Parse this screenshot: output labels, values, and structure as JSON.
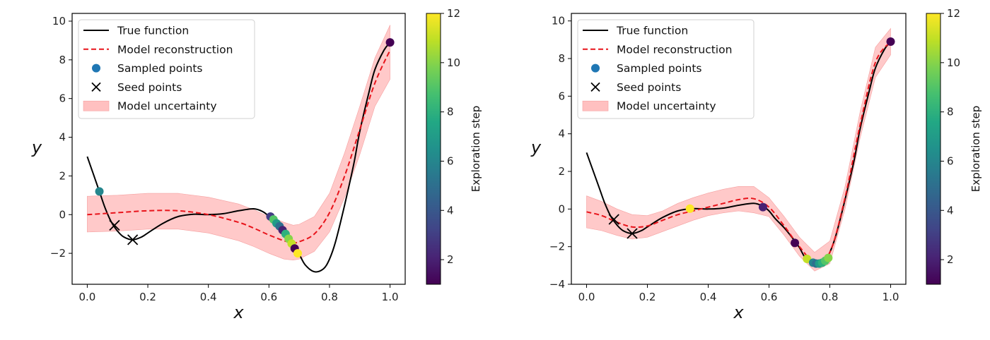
{
  "chart_data": [
    {
      "type": "line",
      "panel": "left",
      "title": "",
      "xlabel": "x",
      "ylabel": "y",
      "xlim": [
        -0.05,
        1.05
      ],
      "ylim": [
        -3.6,
        10.4
      ],
      "xticks": [
        0.0,
        0.2,
        0.4,
        0.6,
        0.8,
        1.0
      ],
      "xtick_labels": [
        "0.0",
        "0.2",
        "0.4",
        "0.6",
        "0.8",
        "1.0"
      ],
      "yticks": [
        -2,
        0,
        2,
        4,
        6,
        8,
        10
      ],
      "ytick_labels": [
        "−2",
        "0",
        "2",
        "4",
        "6",
        "8",
        "10"
      ],
      "grid": false,
      "legend": {
        "placement": "top-left",
        "entries": [
          "True function",
          "Model reconstruction",
          "Sampled points",
          "Seed points",
          "Model uncertainty"
        ]
      },
      "colorbar": {
        "label": "Exploration step",
        "range": [
          1,
          12
        ],
        "ticks": [
          2,
          4,
          6,
          8,
          10,
          12
        ],
        "tick_labels": [
          "2",
          "4",
          "6",
          "8",
          "10",
          "12"
        ],
        "colormap": "viridis"
      },
      "series": [
        {
          "name": "True function",
          "style": "solid",
          "color": "#000000",
          "x": [
            0.0,
            0.02,
            0.04,
            0.06,
            0.08,
            0.1,
            0.12,
            0.15,
            0.18,
            0.2,
            0.25,
            0.3,
            0.35,
            0.4,
            0.45,
            0.5,
            0.55,
            0.58,
            0.6,
            0.62,
            0.65,
            0.68,
            0.7,
            0.72,
            0.75,
            0.78,
            0.8,
            0.82,
            0.85,
            0.88,
            0.9,
            0.93,
            0.95,
            0.98,
            1.0
          ],
          "y": [
            3.0,
            2.1,
            1.2,
            0.3,
            -0.4,
            -0.85,
            -1.15,
            -1.3,
            -1.15,
            -0.95,
            -0.45,
            -0.1,
            0.02,
            0.0,
            0.05,
            0.2,
            0.3,
            0.15,
            -0.1,
            -0.5,
            -1.0,
            -1.6,
            -2.05,
            -2.6,
            -2.95,
            -2.8,
            -2.3,
            -1.4,
            0.5,
            2.6,
            4.3,
            6.3,
            7.5,
            8.5,
            8.9
          ]
        },
        {
          "name": "Model reconstruction",
          "style": "dashed",
          "color": "#e8141b",
          "x": [
            0.0,
            0.1,
            0.2,
            0.3,
            0.4,
            0.5,
            0.55,
            0.6,
            0.65,
            0.68,
            0.7,
            0.75,
            0.8,
            0.85,
            0.9,
            0.95,
            1.0
          ],
          "y": [
            0.0,
            0.1,
            0.2,
            0.2,
            0.0,
            -0.4,
            -0.7,
            -1.05,
            -1.35,
            -1.45,
            -1.4,
            -1.0,
            0.1,
            2.0,
            4.4,
            6.8,
            8.5
          ]
        }
      ],
      "uncertainty_band": {
        "name": "Model uncertainty",
        "color": "#ffc0c0",
        "x": [
          0.0,
          0.1,
          0.2,
          0.3,
          0.4,
          0.5,
          0.55,
          0.6,
          0.65,
          0.68,
          0.7,
          0.75,
          0.8,
          0.85,
          0.9,
          0.95,
          1.0
        ],
        "lower": [
          -0.9,
          -0.85,
          -0.75,
          -0.75,
          -0.95,
          -1.35,
          -1.65,
          -2.0,
          -2.3,
          -2.35,
          -2.3,
          -1.9,
          -0.9,
          0.9,
          3.1,
          5.6,
          7.0
        ],
        "upper": [
          0.95,
          1.0,
          1.1,
          1.1,
          0.9,
          0.55,
          0.25,
          -0.1,
          -0.4,
          -0.55,
          -0.5,
          -0.1,
          1.1,
          3.2,
          5.6,
          8.1,
          9.8
        ]
      },
      "sampled_points": [
        {
          "x": 0.04,
          "y": 1.2,
          "step": 6
        },
        {
          "x": 1.0,
          "y": 8.9,
          "step": 1
        },
        {
          "x": 0.605,
          "y": -0.1,
          "step": 3
        },
        {
          "x": 0.615,
          "y": -0.25,
          "step": 9
        },
        {
          "x": 0.625,
          "y": -0.45,
          "step": 7
        },
        {
          "x": 0.635,
          "y": -0.6,
          "step": 5
        },
        {
          "x": 0.645,
          "y": -0.8,
          "step": 2
        },
        {
          "x": 0.655,
          "y": -1.0,
          "step": 8
        },
        {
          "x": 0.665,
          "y": -1.25,
          "step": 10
        },
        {
          "x": 0.675,
          "y": -1.5,
          "step": 11
        },
        {
          "x": 0.685,
          "y": -1.75,
          "step": 1
        },
        {
          "x": 0.695,
          "y": -2.0,
          "step": 12
        }
      ],
      "seed_points": [
        {
          "x": 0.09,
          "y": -0.55
        },
        {
          "x": 0.15,
          "y": -1.3
        }
      ]
    },
    {
      "type": "line",
      "panel": "right",
      "title": "",
      "xlabel": "x",
      "ylabel": "y",
      "xlim": [
        -0.05,
        1.05
      ],
      "ylim": [
        -4,
        10.4
      ],
      "xticks": [
        0.0,
        0.2,
        0.4,
        0.6,
        0.8,
        1.0
      ],
      "xtick_labels": [
        "0.0",
        "0.2",
        "0.4",
        "0.6",
        "0.8",
        "1.0"
      ],
      "yticks": [
        -4,
        -2,
        0,
        2,
        4,
        6,
        8,
        10
      ],
      "ytick_labels": [
        "−4",
        "−2",
        "0",
        "2",
        "4",
        "6",
        "8",
        "10"
      ],
      "grid": false,
      "legend": {
        "placement": "top-left",
        "entries": [
          "True function",
          "Model reconstruction",
          "Sampled points",
          "Seed points",
          "Model uncertainty"
        ]
      },
      "colorbar": {
        "label": "Exploration step",
        "range": [
          1,
          12
        ],
        "ticks": [
          2,
          4,
          6,
          8,
          10,
          12
        ],
        "tick_labels": [
          "2",
          "4",
          "6",
          "8",
          "10",
          "12"
        ],
        "colormap": "viridis"
      },
      "series": [
        {
          "name": "True function",
          "style": "solid",
          "color": "#000000",
          "x": [
            0.0,
            0.02,
            0.04,
            0.06,
            0.08,
            0.1,
            0.12,
            0.15,
            0.18,
            0.2,
            0.25,
            0.3,
            0.35,
            0.4,
            0.45,
            0.5,
            0.55,
            0.58,
            0.6,
            0.62,
            0.65,
            0.68,
            0.7,
            0.72,
            0.75,
            0.78,
            0.8,
            0.82,
            0.85,
            0.88,
            0.9,
            0.93,
            0.95,
            0.98,
            1.0
          ],
          "y": [
            3.0,
            2.1,
            1.2,
            0.3,
            -0.4,
            -0.85,
            -1.15,
            -1.3,
            -1.15,
            -0.95,
            -0.45,
            -0.1,
            0.02,
            0.0,
            0.05,
            0.2,
            0.3,
            0.15,
            -0.1,
            -0.5,
            -1.0,
            -1.6,
            -2.05,
            -2.6,
            -2.95,
            -2.8,
            -2.3,
            -1.4,
            0.5,
            2.6,
            4.3,
            6.3,
            7.5,
            8.5,
            8.9
          ]
        },
        {
          "name": "Model reconstruction",
          "style": "dashed",
          "color": "#e8141b",
          "x": [
            0.0,
            0.05,
            0.1,
            0.15,
            0.2,
            0.25,
            0.3,
            0.35,
            0.4,
            0.45,
            0.5,
            0.55,
            0.6,
            0.65,
            0.7,
            0.75,
            0.8,
            0.85,
            0.9,
            0.95,
            1.0
          ],
          "y": [
            -0.15,
            -0.35,
            -0.7,
            -0.95,
            -0.9,
            -0.6,
            -0.3,
            -0.1,
            0.1,
            0.3,
            0.5,
            0.55,
            0.1,
            -0.9,
            -2.0,
            -2.8,
            -2.3,
            0.6,
            4.5,
            7.8,
            8.9
          ]
        }
      ],
      "uncertainty_band": {
        "name": "Model uncertainty",
        "color": "#ffc0c0",
        "x": [
          0.0,
          0.05,
          0.1,
          0.15,
          0.2,
          0.25,
          0.3,
          0.35,
          0.4,
          0.45,
          0.5,
          0.55,
          0.6,
          0.65,
          0.7,
          0.75,
          0.8,
          0.85,
          0.9,
          0.95,
          1.0
        ],
        "lower": [
          -1.0,
          -1.15,
          -1.4,
          -1.6,
          -1.5,
          -1.2,
          -0.9,
          -0.6,
          -0.35,
          -0.2,
          -0.1,
          -0.2,
          -0.4,
          -1.4,
          -2.5,
          -3.3,
          -2.9,
          0.0,
          3.8,
          7.0,
          8.2
        ],
        "upper": [
          0.7,
          0.4,
          0.0,
          -0.3,
          -0.35,
          -0.1,
          0.3,
          0.6,
          0.85,
          1.05,
          1.2,
          1.2,
          0.6,
          -0.4,
          -1.5,
          -2.3,
          -1.7,
          1.2,
          5.2,
          8.6,
          9.6
        ]
      },
      "sampled_points": [
        {
          "x": 1.0,
          "y": 8.9,
          "step": 1
        },
        {
          "x": 0.58,
          "y": 0.1,
          "step": 2
        },
        {
          "x": 0.34,
          "y": 0.02,
          "step": 12
        },
        {
          "x": 0.685,
          "y": -1.8,
          "step": 1
        },
        {
          "x": 0.725,
          "y": -2.65,
          "step": 11
        },
        {
          "x": 0.745,
          "y": -2.85,
          "step": 6
        },
        {
          "x": 0.755,
          "y": -2.9,
          "step": 5
        },
        {
          "x": 0.765,
          "y": -2.9,
          "step": 7
        },
        {
          "x": 0.775,
          "y": -2.85,
          "step": 8
        },
        {
          "x": 0.785,
          "y": -2.75,
          "step": 9
        },
        {
          "x": 0.795,
          "y": -2.6,
          "step": 10
        }
      ],
      "seed_points": [
        {
          "x": 0.09,
          "y": -0.55
        },
        {
          "x": 0.15,
          "y": -1.3
        }
      ]
    }
  ]
}
